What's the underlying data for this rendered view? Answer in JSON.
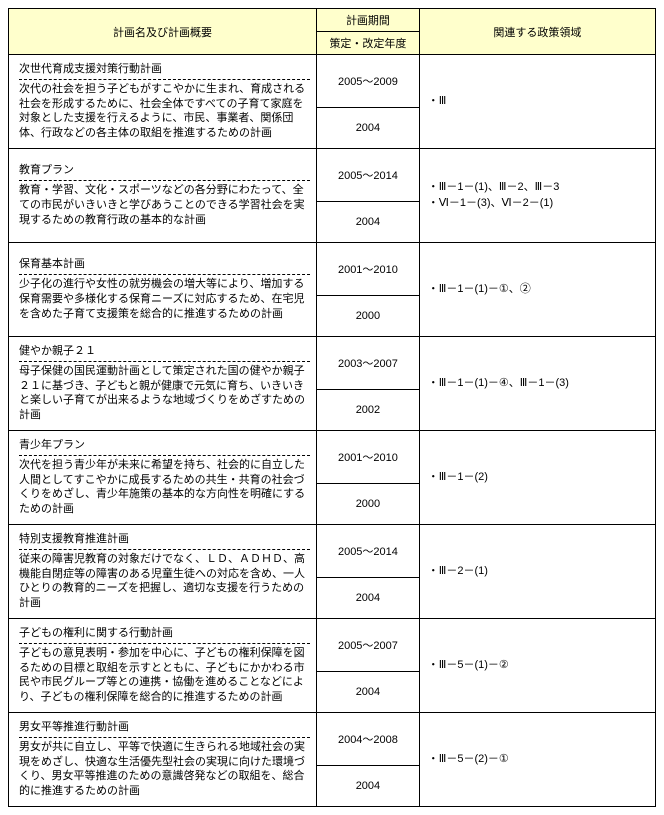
{
  "headers": {
    "plan": "計画名及び計画概要",
    "period_group": "計画期間",
    "period_sub": "策定・改定年度",
    "policy": "関連する政策領域"
  },
  "rows": [
    {
      "title": "次世代育成支援対策行動計画",
      "desc": "次代の社会を担う子どもがすこやかに生まれ、育成される社会を形成するために、社会全体ですべての子育て家庭を対象とした支援を行えるように、市民、事業者、関係団体、行政などの各主体の取組を推進するための計画",
      "period": "2005～2009",
      "revised": "2004",
      "policy": "・Ⅲ"
    },
    {
      "title": "教育プラン",
      "desc": "教育・学習、文化・スポーツなどの各分野にわたって、全ての市民がいきいきと学びあうことのできる学習社会を実現するための教育行政の基本的な計画",
      "period": "2005～2014",
      "revised": "2004",
      "policy": "・Ⅲ－1－(1)、Ⅲ－2、Ⅲ－3\n・Ⅵ－1－(3)、Ⅵ－2－(1)"
    },
    {
      "title": "保育基本計画",
      "desc": "少子化の進行や女性の就労機会の増大等により、増加する保育需要や多様化する保育ニーズに対応するため、在宅児を含めた子育て支援策を総合的に推進するための計画",
      "period": "2001～2010",
      "revised": "2000",
      "policy": "・Ⅲ－1－(1)－①、②"
    },
    {
      "title": "健やか親子２１",
      "desc": "母子保健の国民運動計画として策定された国の健やか親子２１に基づき、子どもと親が健康で元気に育ち、いきいきと楽しい子育てが出来るような地域づくりをめざすための計画",
      "period": "2003～2007",
      "revised": "2002",
      "policy": "・Ⅲ－1－(1)－④、Ⅲ－1－(3)"
    },
    {
      "title": "青少年プラン",
      "desc": "次代を担う青少年が未来に希望を持ち、社会的に自立した人間としてすこやかに成長するための共生・共育の社会づくりをめざし、青少年施策の基本的な方向性を明確にするための計画",
      "period": "2001～2010",
      "revised": "2000",
      "policy": "・Ⅲ－1－(2)"
    },
    {
      "title": "特別支援教育推進計画",
      "desc": "従来の障害児教育の対象だけでなく、ＬＤ、ＡＤＨＤ、高機能自閉症等の障害のある児童生徒への対応を含め、一人ひとりの教育的ニーズを把握し、適切な支援を行うための計画",
      "period": "2005～2014",
      "revised": "2004",
      "policy": "・Ⅲ－2－(1)"
    },
    {
      "title": "子どもの権利に関する行動計画",
      "desc": "子どもの意見表明・参加を中心に、子どもの権利保障を図るための目標と取組を示すとともに、子どもにかかわる市民や市民グループ等との連携・協働を進めることなどにより、子どもの権利保障を総合的に推進するための計画",
      "period": "2005～2007",
      "revised": "2004",
      "policy": "・Ⅲ－5－(1)－②"
    },
    {
      "title": "男女平等推進行動計画",
      "desc": "男女が共に自立し、平等で快適に生きられる地域社会の実現をめざし、快適な生活優先型社会の実現に向けた環境づくり、男女平等推進のための意識啓発などの取組を、総合的に推進するための計画",
      "period": "2004～2008",
      "revised": "2004",
      "policy": "・Ⅲ－5－(2)－①"
    }
  ]
}
